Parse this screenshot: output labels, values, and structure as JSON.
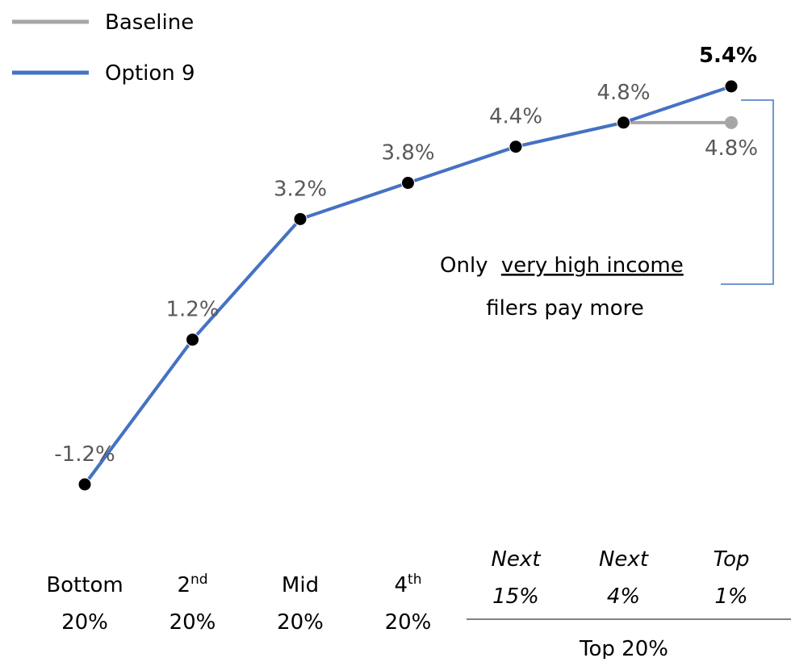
{
  "chart_data": {
    "type": "line",
    "categories": [
      "Bottom 20%",
      "2nd 20%",
      "Mid 20%",
      "4th 20%",
      "Next 15%",
      "Next 4%",
      "Top 1%"
    ],
    "group": {
      "label": "Top 20%",
      "start": 4
    },
    "series": [
      {
        "name": "Baseline",
        "color": "#a6a6a6",
        "values": [
          -1.2,
          1.2,
          3.2,
          3.8,
          4.4,
          4.8,
          4.8
        ],
        "value_labels": [
          null,
          null,
          null,
          null,
          null,
          null,
          "4.8%"
        ]
      },
      {
        "name": "Option 9",
        "color": "#4472c4",
        "values": [
          -1.2,
          1.2,
          3.2,
          3.8,
          4.4,
          4.8,
          5.4
        ],
        "value_labels": [
          "-1.2%",
          "1.2%",
          "3.2%",
          "3.8%",
          "4.4%",
          "4.8%",
          "5.4%"
        ]
      }
    ],
    "annotation": [
      "Only",
      "very high income",
      "filers pay more"
    ]
  }
}
